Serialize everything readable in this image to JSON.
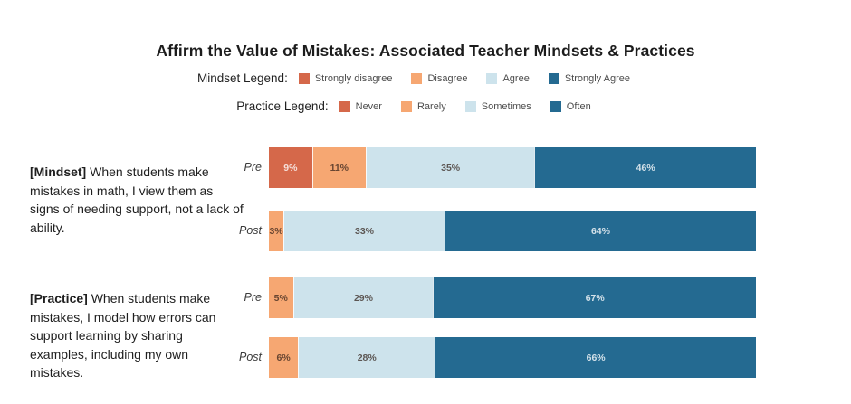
{
  "chart_data": {
    "type": "bar",
    "subtype": "horizontal-stacked",
    "title": "Affirm the Value of Mistakes: Associated Teacher Mindsets & Practices",
    "x_axis": {
      "min": 0,
      "max": 100,
      "unit": "%",
      "visible": false
    },
    "palette": {
      "strongly_negative": "#D5684A",
      "negative": "#F6A772",
      "positive": "#CDE3EC",
      "strongly_positive": "#246A91"
    },
    "legends": [
      {
        "name": "Mindset Legend:",
        "items": [
          {
            "label": "Strongly disagree",
            "color": "#D5684A"
          },
          {
            "label": "Disagree",
            "color": "#F6A772"
          },
          {
            "label": "Agree",
            "color": "#CDE3EC"
          },
          {
            "label": "Strongly Agree",
            "color": "#246A91"
          }
        ]
      },
      {
        "name": "Practice Legend:",
        "items": [
          {
            "label": "Never",
            "color": "#D5684A"
          },
          {
            "label": "Rarely",
            "color": "#F6A772"
          },
          {
            "label": "Sometimes",
            "color": "#CDE3EC"
          },
          {
            "label": "Often",
            "color": "#246A91"
          }
        ]
      }
    ],
    "groups": [
      {
        "tag": "[Mindset]",
        "statement": "When students make mistakes in math, I view them as signs of needing support, not a lack of ability.",
        "rows": [
          {
            "label": "Pre",
            "segments": [
              {
                "category": "Strongly disagree",
                "value": 9,
                "color": "#D5684A"
              },
              {
                "category": "Disagree",
                "value": 11,
                "color": "#F6A772"
              },
              {
                "category": "Agree",
                "value": 35,
                "color": "#CDE3EC"
              },
              {
                "category": "Strongly Agree",
                "value": 46,
                "color": "#246A91"
              }
            ]
          },
          {
            "label": "Post",
            "segments": [
              {
                "category": "Disagree",
                "value": 3,
                "color": "#F6A772"
              },
              {
                "category": "Agree",
                "value": 33,
                "color": "#CDE3EC"
              },
              {
                "category": "Strongly Agree",
                "value": 64,
                "color": "#246A91"
              }
            ]
          }
        ]
      },
      {
        "tag": "[Practice]",
        "statement": "When students make mistakes, I model how errors can support learning by sharing examples, including my own mistakes.",
        "rows": [
          {
            "label": "Pre",
            "segments": [
              {
                "category": "Rarely",
                "value": 5,
                "color": "#F6A772"
              },
              {
                "category": "Sometimes",
                "value": 29,
                "color": "#CDE3EC"
              },
              {
                "category": "Often",
                "value": 67,
                "color": "#246A91"
              }
            ]
          },
          {
            "label": "Post",
            "segments": [
              {
                "category": "Rarely",
                "value": 6,
                "color": "#F6A772"
              },
              {
                "category": "Sometimes",
                "value": 28,
                "color": "#CDE3EC"
              },
              {
                "category": "Often",
                "value": 66,
                "color": "#246A91"
              }
            ]
          }
        ]
      }
    ]
  }
}
